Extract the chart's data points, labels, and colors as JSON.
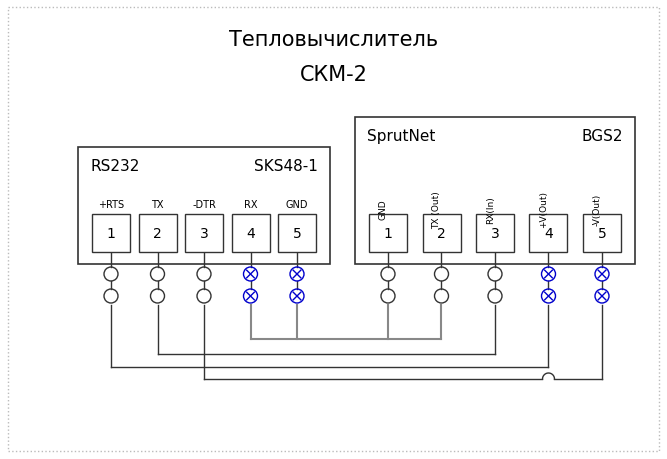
{
  "title_line1": "Тепловычислитель",
  "title_line2": "СКМ-2",
  "box1_label1": "RS232",
  "box1_label2": "SKS48-1",
  "box2_label1": "SprutNet",
  "box2_label2": "BGS2",
  "box1_pins": [
    "1",
    "2",
    "3",
    "4",
    "5"
  ],
  "box1_pin_labels": [
    "+RTS",
    "TX",
    "-DTR",
    "RX",
    "GND"
  ],
  "box2_pins": [
    "1",
    "2",
    "3",
    "4",
    "5"
  ],
  "box2_pin_labels": [
    "GND",
    "TX (Out)",
    "RX(In)",
    "+V(Out)",
    "-V(Out)"
  ],
  "bg_color": "#ffffff",
  "line_color": "#333333",
  "gray_line_color": "#888888",
  "blue_color": "#0000cc"
}
